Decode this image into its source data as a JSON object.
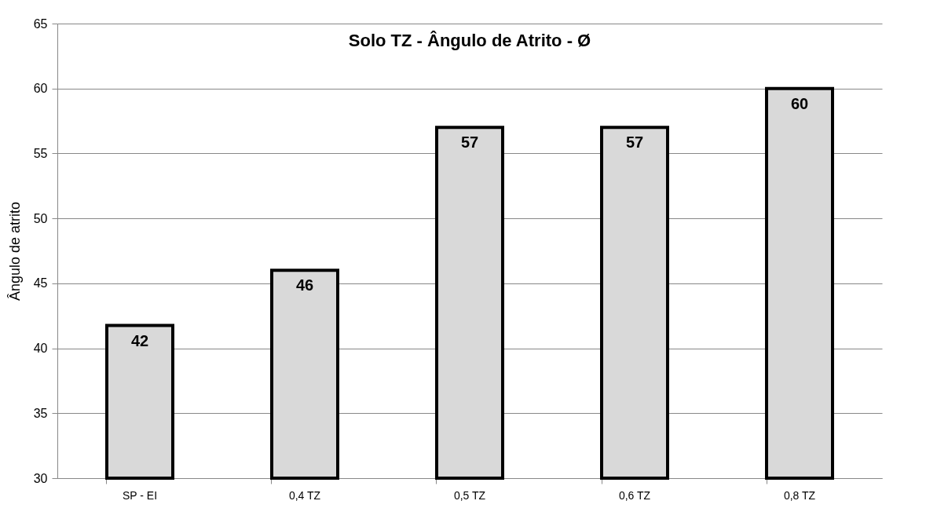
{
  "chart_data": {
    "type": "bar",
    "title": "Solo TZ - Ângulo de Atrito - Ø",
    "ylabel": "Ângulo de atrito",
    "categories": [
      "SP - EI",
      "0,4 TZ",
      "0,5 TZ",
      "0,6 TZ",
      "0,8 TZ"
    ],
    "values": [
      41.75,
      46,
      57,
      57,
      60
    ],
    "value_labels": [
      "42",
      "46",
      "57",
      "57",
      "60"
    ],
    "color": "#d9d9d9",
    "ylim": [
      30,
      65
    ],
    "yticks": [
      30,
      35,
      40,
      45,
      50,
      55,
      60,
      65
    ],
    "grid": "y"
  }
}
